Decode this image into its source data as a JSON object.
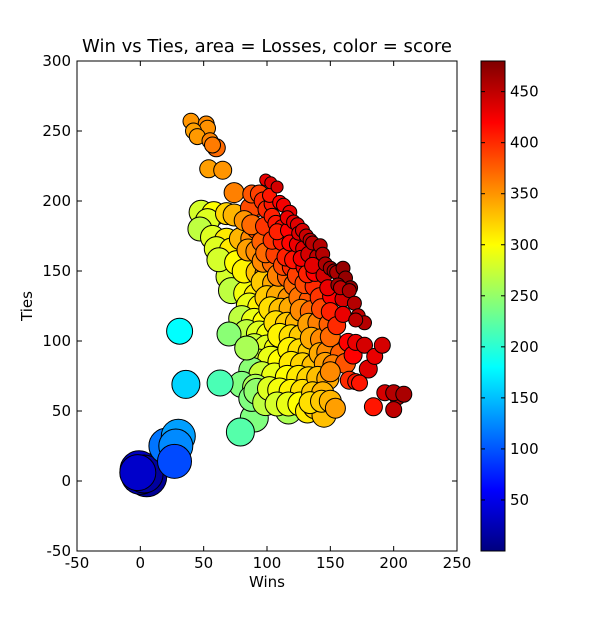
{
  "chart_data": {
    "type": "scatter",
    "title": "Win vs Ties, area = Losses, color = score",
    "xlabel": "Wins",
    "ylabel": "Ties",
    "xlim": [
      -50,
      250
    ],
    "ylim": [
      -50,
      300
    ],
    "xticks": [
      -50,
      0,
      50,
      100,
      150,
      200,
      250
    ],
    "yticks": [
      -50,
      0,
      50,
      100,
      150,
      200,
      250,
      300
    ],
    "colormap": "jet",
    "colorbar": {
      "min": 0,
      "max": 480,
      "ticks": [
        50,
        100,
        150,
        200,
        250,
        300,
        350,
        400,
        450
      ]
    },
    "grid": false,
    "legend": "none",
    "fields": [
      "wins",
      "ties",
      "losses",
      "score"
    ],
    "points": [
      [
        40,
        257,
        8,
        350
      ],
      [
        52,
        255,
        8,
        355
      ],
      [
        53,
        252,
        8,
        352
      ],
      [
        42,
        250,
        8,
        345
      ],
      [
        45,
        246,
        8,
        348
      ],
      [
        55,
        243,
        8,
        358
      ],
      [
        57,
        240,
        8,
        362
      ],
      [
        60,
        238,
        9,
        370
      ],
      [
        54,
        223,
        9,
        345
      ],
      [
        65,
        222,
        9,
        350
      ],
      [
        99,
        215,
        6,
        430
      ],
      [
        103,
        213,
        6,
        435
      ],
      [
        108,
        210,
        6,
        440
      ],
      [
        74,
        206,
        10,
        360
      ],
      [
        88,
        205,
        9,
        380
      ],
      [
        94,
        205,
        9,
        390
      ],
      [
        102,
        204,
        7,
        410
      ],
      [
        97,
        200,
        9,
        400
      ],
      [
        104,
        198,
        8,
        410
      ],
      [
        110,
        199,
        7,
        420
      ],
      [
        113,
        197,
        7,
        425
      ],
      [
        92,
        196,
        10,
        390
      ],
      [
        87,
        195,
        10,
        385
      ],
      [
        100,
        194,
        9,
        400
      ],
      [
        48,
        192,
        12,
        280
      ],
      [
        58,
        191,
        12,
        300
      ],
      [
        68,
        191,
        11,
        320
      ],
      [
        74,
        190,
        11,
        335
      ],
      [
        118,
        192,
        7,
        430
      ],
      [
        116,
        188,
        7,
        428
      ],
      [
        121,
        185,
        7,
        432
      ],
      [
        124,
        183,
        7,
        435
      ],
      [
        104,
        189,
        8,
        405
      ],
      [
        107,
        184,
        8,
        410
      ],
      [
        98,
        182,
        9,
        395
      ],
      [
        92,
        180,
        10,
        385
      ],
      [
        53,
        186,
        12,
        285
      ],
      [
        82,
        186,
        10,
        350
      ],
      [
        88,
        183,
        10,
        370
      ],
      [
        112,
        181,
        8,
        415
      ],
      [
        108,
        178,
        8,
        405
      ],
      [
        117,
        179,
        8,
        420
      ],
      [
        125,
        177,
        7,
        435
      ],
      [
        128,
        179,
        7,
        440
      ],
      [
        131,
        175,
        7,
        445
      ],
      [
        134,
        172,
        7,
        450
      ],
      [
        136,
        170,
        7,
        452
      ],
      [
        47,
        180,
        12,
        270
      ],
      [
        57,
        174,
        12,
        285
      ],
      [
        68,
        172,
        12,
        310
      ],
      [
        79,
        173,
        11,
        335
      ],
      [
        88,
        173,
        11,
        355
      ],
      [
        96,
        171,
        10,
        375
      ],
      [
        104,
        172,
        9,
        395
      ],
      [
        112,
        171,
        9,
        410
      ],
      [
        118,
        170,
        8,
        418
      ],
      [
        124,
        169,
        8,
        428
      ],
      [
        129,
        166,
        8,
        435
      ],
      [
        142,
        168,
        7,
        455
      ],
      [
        60,
        166,
        12,
        285
      ],
      [
        72,
        165,
        12,
        310
      ],
      [
        85,
        165,
        11,
        345
      ],
      [
        92,
        164,
        11,
        355
      ],
      [
        99,
        163,
        10,
        370
      ],
      [
        107,
        162,
        10,
        390
      ],
      [
        115,
        160,
        9,
        405
      ],
      [
        121,
        158,
        9,
        412
      ],
      [
        127,
        159,
        8,
        425
      ],
      [
        133,
        162,
        8,
        440
      ],
      [
        140,
        160,
        8,
        450
      ],
      [
        144,
        162,
        7,
        455
      ],
      [
        62,
        158,
        12,
        280
      ],
      [
        76,
        156,
        12,
        300
      ],
      [
        90,
        159,
        12,
        340
      ],
      [
        97,
        157,
        11,
        355
      ],
      [
        105,
        156,
        11,
        370
      ],
      [
        113,
        154,
        10,
        385
      ],
      [
        120,
        153,
        10,
        400
      ],
      [
        130,
        153,
        9,
        420
      ],
      [
        136,
        154,
        8,
        432
      ],
      [
        146,
        155,
        7,
        458
      ],
      [
        150,
        152,
        7,
        462
      ],
      [
        153,
        150,
        7,
        465
      ],
      [
        73,
        154,
        13,
        290
      ],
      [
        82,
        150,
        12,
        305
      ],
      [
        93,
        149,
        12,
        330
      ],
      [
        100,
        148,
        12,
        345
      ],
      [
        109,
        147,
        11,
        360
      ],
      [
        117,
        146,
        11,
        375
      ],
      [
        124,
        147,
        10,
        390
      ],
      [
        132,
        148,
        9,
        405
      ],
      [
        138,
        149,
        9,
        420
      ],
      [
        145,
        147,
        8,
        440
      ],
      [
        155,
        149,
        7,
        460
      ],
      [
        160,
        152,
        7,
        470
      ],
      [
        162,
        145,
        7,
        470
      ],
      [
        166,
        138,
        7,
        472
      ],
      [
        156,
        140,
        7,
        465
      ],
      [
        70,
        146,
        13,
        280
      ],
      [
        88,
        143,
        13,
        310
      ],
      [
        97,
        142,
        12,
        325
      ],
      [
        106,
        141,
        12,
        340
      ],
      [
        114,
        140,
        12,
        355
      ],
      [
        122,
        140,
        11,
        370
      ],
      [
        130,
        141,
        10,
        385
      ],
      [
        138,
        139,
        10,
        400
      ],
      [
        148,
        138,
        8,
        430
      ],
      [
        158,
        138,
        7,
        450
      ],
      [
        165,
        136,
        7,
        460
      ],
      [
        72,
        136,
        13,
        270
      ],
      [
        84,
        134,
        13,
        295
      ],
      [
        92,
        132,
        13,
        310
      ],
      [
        100,
        131,
        12,
        325
      ],
      [
        109,
        132,
        12,
        340
      ],
      [
        118,
        130,
        12,
        350
      ],
      [
        126,
        131,
        11,
        365
      ],
      [
        134,
        129,
        11,
        380
      ],
      [
        142,
        131,
        10,
        395
      ],
      [
        151,
        132,
        9,
        420
      ],
      [
        160,
        130,
        8,
        440
      ],
      [
        169,
        127,
        7,
        455
      ],
      [
        86,
        125,
        13,
        290
      ],
      [
        95,
        124,
        13,
        305
      ],
      [
        103,
        123,
        12,
        315
      ],
      [
        111,
        122,
        12,
        330
      ],
      [
        119,
        123,
        12,
        340
      ],
      [
        127,
        122,
        11,
        355
      ],
      [
        135,
        121,
        11,
        370
      ],
      [
        143,
        123,
        10,
        385
      ],
      [
        150,
        121,
        9,
        405
      ],
      [
        160,
        119,
        8,
        430
      ],
      [
        172,
        118,
        7,
        450
      ],
      [
        177,
        113,
        7,
        455
      ],
      [
        170,
        115,
        7,
        450
      ],
      [
        80,
        116,
        13,
        270
      ],
      [
        90,
        114,
        13,
        290
      ],
      [
        99,
        113,
        13,
        300
      ],
      [
        107,
        113,
        12,
        315
      ],
      [
        116,
        112,
        12,
        325
      ],
      [
        124,
        113,
        12,
        335
      ],
      [
        133,
        112,
        11,
        345
      ],
      [
        141,
        113,
        11,
        360
      ],
      [
        149,
        112,
        10,
        375
      ],
      [
        155,
        111,
        9,
        400
      ],
      [
        84,
        106,
        13,
        270
      ],
      [
        94,
        105,
        13,
        285
      ],
      [
        102,
        104,
        13,
        295
      ],
      [
        110,
        104,
        12,
        305
      ],
      [
        119,
        103,
        12,
        315
      ],
      [
        127,
        103,
        12,
        325
      ],
      [
        135,
        102,
        11,
        340
      ],
      [
        143,
        101,
        11,
        355
      ],
      [
        150,
        103,
        10,
        370
      ],
      [
        164,
        99,
        9,
        420
      ],
      [
        170,
        99,
        8,
        430
      ],
      [
        177,
        97,
        8,
        440
      ],
      [
        31,
        107,
        13,
        180
      ],
      [
        70,
        105,
        12,
        245
      ],
      [
        90,
        96,
        13,
        275
      ],
      [
        100,
        95,
        13,
        285
      ],
      [
        108,
        94,
        13,
        295
      ],
      [
        118,
        94,
        12,
        305
      ],
      [
        126,
        93,
        12,
        315
      ],
      [
        134,
        92,
        12,
        325
      ],
      [
        142,
        91,
        11,
        340
      ],
      [
        148,
        92,
        11,
        355
      ],
      [
        158,
        91,
        10,
        375
      ],
      [
        168,
        90,
        9,
        420
      ],
      [
        185,
        89,
        8,
        430
      ],
      [
        191,
        97,
        8,
        440
      ],
      [
        84,
        95,
        12,
        260
      ],
      [
        93,
        85,
        13,
        275
      ],
      [
        103,
        87,
        13,
        290
      ],
      [
        111,
        85,
        13,
        300
      ],
      [
        119,
        84,
        12,
        310
      ],
      [
        128,
        83,
        12,
        320
      ],
      [
        137,
        82,
        12,
        330
      ],
      [
        146,
        84,
        11,
        345
      ],
      [
        152,
        83,
        10,
        360
      ],
      [
        162,
        84,
        10,
        380
      ],
      [
        180,
        80,
        9,
        435
      ],
      [
        88,
        79,
        13,
        245
      ],
      [
        96,
        76,
        13,
        275
      ],
      [
        106,
        75,
        13,
        290
      ],
      [
        116,
        74,
        12,
        300
      ],
      [
        125,
        74,
        12,
        310
      ],
      [
        133,
        73,
        12,
        320
      ],
      [
        140,
        74,
        11,
        330
      ],
      [
        148,
        73,
        11,
        340
      ],
      [
        150,
        78,
        10,
        355
      ],
      [
        165,
        72,
        9,
        400
      ],
      [
        170,
        71,
        8,
        410
      ],
      [
        80,
        69,
        13,
        240
      ],
      [
        63,
        70,
        13,
        215
      ],
      [
        91,
        67,
        13,
        260
      ],
      [
        102,
        66,
        12,
        285
      ],
      [
        110,
        65,
        12,
        295
      ],
      [
        119,
        64,
        12,
        305
      ],
      [
        128,
        64,
        12,
        315
      ],
      [
        136,
        63,
        11,
        325
      ],
      [
        144,
        63,
        11,
        335
      ],
      [
        173,
        70,
        8,
        410
      ],
      [
        193,
        63,
        8,
        440
      ],
      [
        203,
        60,
        8,
        450
      ],
      [
        200,
        63,
        8,
        455
      ],
      [
        208,
        62,
        8,
        460
      ],
      [
        36,
        69,
        14,
        160
      ],
      [
        88,
        59,
        13,
        240
      ],
      [
        92,
        64,
        13,
        248
      ],
      [
        99,
        56,
        13,
        270
      ],
      [
        108,
        55,
        12,
        280
      ],
      [
        117,
        55,
        12,
        290
      ],
      [
        126,
        55,
        12,
        300
      ],
      [
        134,
        56,
        11,
        315
      ],
      [
        143,
        57,
        11,
        325
      ],
      [
        150,
        57,
        11,
        335
      ],
      [
        154,
        52,
        10,
        345
      ],
      [
        184,
        53,
        9,
        410
      ],
      [
        200,
        51,
        8,
        450
      ],
      [
        90,
        45,
        14,
        240
      ],
      [
        110,
        57,
        13,
        250
      ],
      [
        117,
        50,
        13,
        260
      ],
      [
        132,
        50,
        12,
        310
      ],
      [
        138,
        53,
        12,
        325
      ],
      [
        145,
        47,
        12,
        330
      ],
      [
        79,
        35,
        14,
        220
      ],
      [
        30,
        32,
        17,
        135
      ],
      [
        28,
        25,
        17,
        125
      ],
      [
        21,
        25,
        18,
        115
      ],
      [
        27,
        14,
        17,
        95
      ],
      [
        -1,
        8,
        19,
        30
      ],
      [
        0,
        4,
        19,
        20
      ],
      [
        3,
        5,
        19,
        15
      ],
      [
        5,
        3,
        20,
        10
      ],
      [
        -2,
        6,
        18,
        35
      ]
    ]
  }
}
